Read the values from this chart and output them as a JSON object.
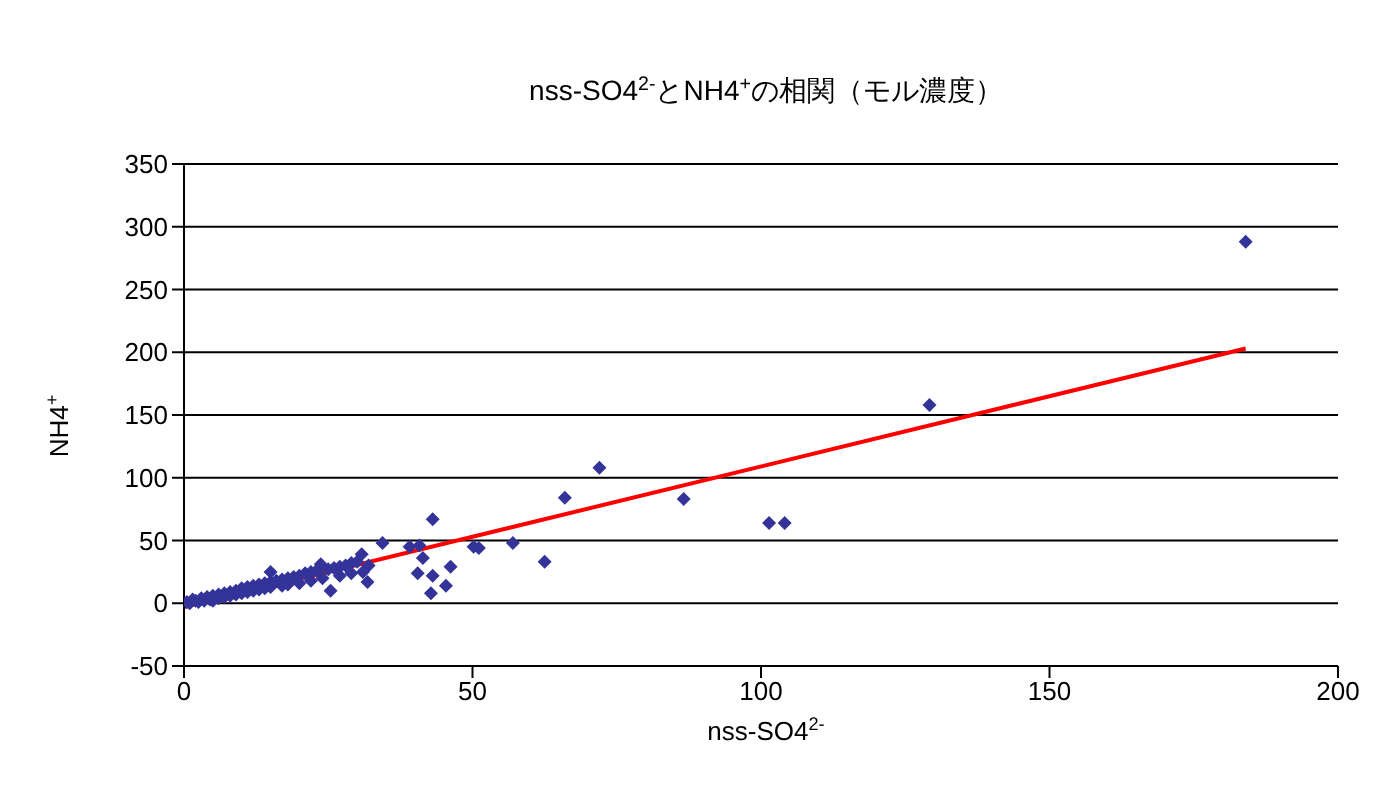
{
  "chart_data": {
    "type": "scatter",
    "title": "nss-SO4$^{2-}$とNH4$^{+}$の相関（モル濃度）",
    "xlabel": "nss-SO4$^{2-}$",
    "ylabel": "NH4$^{+}$",
    "xlim": [
      0,
      200
    ],
    "xticks": [
      0,
      50,
      100,
      150,
      200
    ],
    "ylim": [
      -50,
      350
    ],
    "yticks": [
      -50,
      0,
      50,
      100,
      150,
      200,
      250,
      300,
      350
    ],
    "grid": "y",
    "marker": "diamond",
    "series": [
      {
        "type": "scatter",
        "color": "#333399",
        "x": [
          0.5,
          1,
          1.5,
          2,
          2.5,
          3,
          3.5,
          4,
          4.5,
          5,
          5,
          6,
          6,
          7,
          7,
          8,
          8,
          9,
          9,
          10,
          10,
          11,
          11,
          12,
          12,
          13,
          13,
          14,
          14,
          15,
          15,
          15,
          16,
          17,
          17,
          18,
          18,
          19,
          20,
          20,
          21,
          22,
          22,
          23,
          23.7,
          24,
          25,
          25.4,
          26,
          27,
          27,
          28,
          29,
          29,
          30,
          30.8,
          31,
          31.8,
          32,
          34.4,
          39.1,
          40.8,
          41.4,
          40.5,
          43.1,
          45.4,
          46.2,
          42.8,
          43.1,
          50.2,
          51.1,
          57,
          62.5,
          66,
          72,
          86.6,
          101.4,
          104.1,
          129.2,
          184
        ],
        "values": [
          1,
          0,
          3,
          2,
          1,
          4,
          2,
          5,
          3,
          6,
          2,
          7,
          4,
          8,
          5,
          9,
          6,
          10,
          7,
          12,
          8,
          13,
          9,
          14,
          10,
          15,
          11,
          16,
          12,
          25,
          17,
          13,
          18,
          19,
          14,
          20,
          15,
          21,
          22,
          16,
          24,
          25,
          18,
          26,
          31,
          20,
          27,
          10,
          28,
          29,
          22,
          30,
          32,
          24,
          33,
          39,
          25,
          17,
          30,
          48,
          45,
          46,
          36,
          24,
          22,
          14,
          29,
          8,
          67,
          45,
          44,
          48,
          33,
          84,
          108,
          83,
          64,
          64,
          158,
          288
        ]
      },
      {
        "type": "line",
        "color": "#ff0000",
        "x": [
          0,
          184
        ],
        "values": [
          -3,
          203
        ],
        "marker": "none"
      }
    ]
  }
}
